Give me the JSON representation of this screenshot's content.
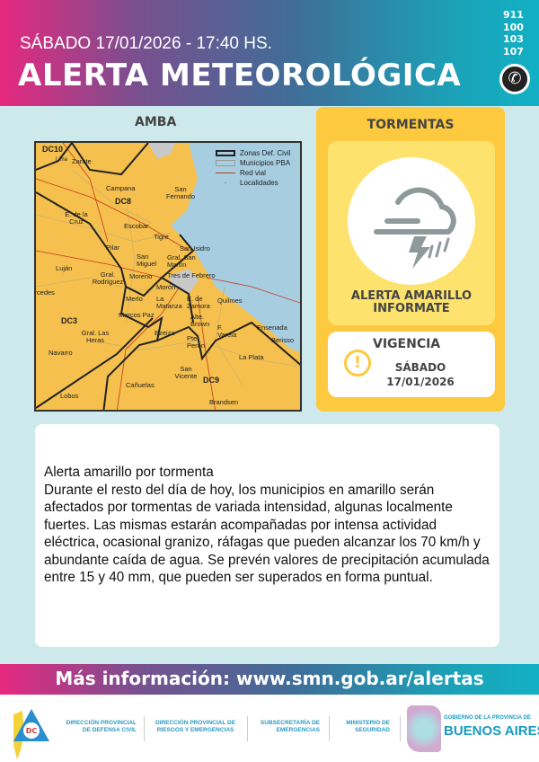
{
  "header": {
    "datetime": "SÁBADO 17/01/2026 - 17:40 HS.",
    "title": "ALERTA METEOROLÓGICA",
    "phones": [
      "911",
      "100",
      "103",
      "107"
    ],
    "phone_icon": "phone-icon"
  },
  "map": {
    "title": "AMBA",
    "legend": [
      "Zonas Def. Civil",
      "Municipios PBA",
      "Red vial",
      "Localidades"
    ],
    "zones": [
      "DC10",
      "DC8",
      "DC3",
      "DC9"
    ],
    "places": [
      "Zarate",
      "Campana",
      "San Fernando",
      "E. de la Cruz",
      "Escobar",
      "Tigre",
      "San Isidro",
      "Pilar",
      "San Miguel",
      "Gral. San Martín",
      "Luján",
      "Moreno",
      "Gral. Rodríguez",
      "Tres de Febrero",
      "Morón",
      "Merlo",
      "La Matanza",
      "E. de Zamora",
      "Quilmes",
      "Marcos Paz",
      "Alte. Brown",
      "Gral. Las Heras",
      "Ezeiza",
      "F. Varela",
      "Ensenada",
      "Berisso",
      "Pte. Perón",
      "La Plata",
      "Cañuelas",
      "San Vicente",
      "Lobos",
      "Brandsen",
      "Navarro",
      "Lima",
      "Mercedes"
    ]
  },
  "panel": {
    "hazard": "TORMENTAS",
    "icon": "storm-cloud-icon",
    "alert_line1": "ALERTA AMARILLO",
    "alert_line2": "INFORMATE",
    "validity_title": "VIGENCIA",
    "validity_day": "SÁBADO",
    "validity_date": "17/01/2026",
    "color_yellow": "#fdc93f"
  },
  "description": {
    "title": "Alerta amarillo por tormenta",
    "body": "Durante el resto del día de hoy, los municipios en amarillo serán afectados por tormentas de variada intensidad, algunas localmente fuertes. Las mismas estarán acompañadas por intensa actividad eléctrica, ocasional granizo, ráfagas que pueden alcanzar los 70 km/h y abundante caída de agua. Se prevén valores de precipitación acumulada entre 15 y 40 mm, que pueden ser superados en forma puntual."
  },
  "info_bar": {
    "label": "Más información: www.smn.gob.ar/alertas"
  },
  "footer": {
    "orgs": [
      [
        "DIRECCIÓN PROVINCIAL",
        "DE DEFENSA CIVIL"
      ],
      [
        "DIRECCIÓN PROVINCIAL DE",
        "RIESGOS Y EMERGENCIAS"
      ],
      [
        "SUBSECRETARÍA DE",
        "EMERGENCIAS"
      ],
      [
        "MINISTERIO DE",
        "SEGURIDAD"
      ]
    ],
    "dc_logo": "DC",
    "gov_small": "GOBIERNO DE LA PROVINCIA DE",
    "gov_big": "BUENOS AIRES"
  }
}
